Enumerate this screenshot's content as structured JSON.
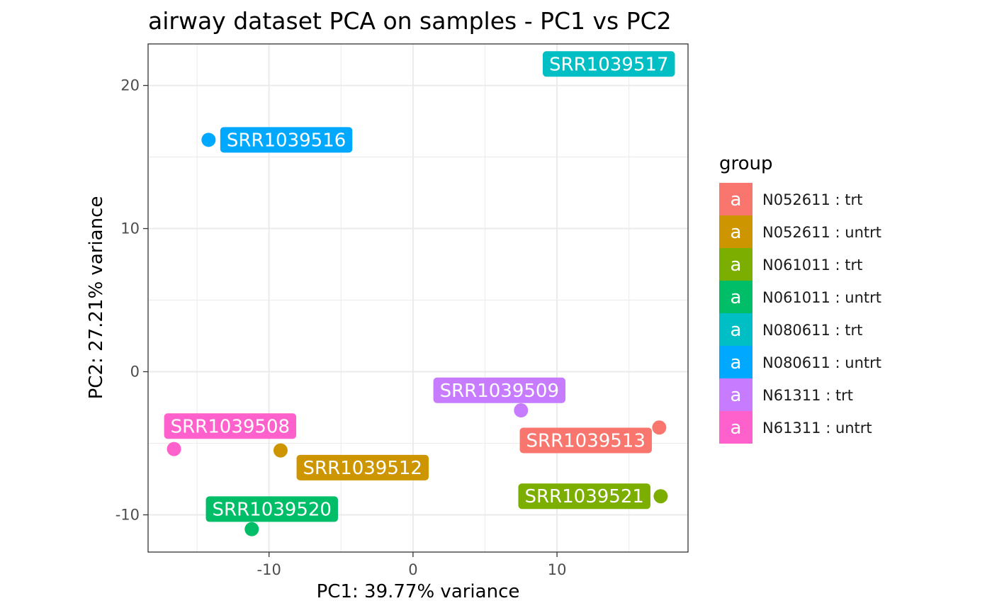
{
  "chart_data": {
    "type": "scatter",
    "title": "airway dataset PCA on samples - PC1 vs PC2",
    "xlabel": "PC1: 39.77% variance",
    "ylabel": "PC2: 27.21% variance",
    "xlim": [
      -18.4,
      19.1
    ],
    "ylim": [
      -12.6,
      22.9
    ],
    "x_ticks": [
      -10,
      0,
      10
    ],
    "x_tick_labels": [
      "-10",
      "0",
      "10"
    ],
    "y_ticks": [
      -10,
      0,
      10,
      20
    ],
    "y_tick_labels": [
      "-10",
      "0",
      "10",
      "20"
    ],
    "grid": true,
    "legend": {
      "title": "group",
      "position": "right",
      "key_glyph": "a",
      "entries": [
        {
          "name": "N052611 : trt",
          "color": "#F8766D"
        },
        {
          "name": "N052611 : untrt",
          "color": "#CD9600"
        },
        {
          "name": "N061011 : trt",
          "color": "#7CAE00"
        },
        {
          "name": "N061011 : untrt",
          "color": "#00BE67"
        },
        {
          "name": "N080611 : trt",
          "color": "#00BFC4"
        },
        {
          "name": "N080611 : untrt",
          "color": "#00A9FF"
        },
        {
          "name": "N61311 : trt",
          "color": "#C77CFF"
        },
        {
          "name": "N61311 : untrt",
          "color": "#FF61CC"
        }
      ]
    },
    "points": [
      {
        "label": "SRR1039508",
        "group": "N61311 : untrt",
        "color": "#FF61CC",
        "x": -16.6,
        "y": -5.4,
        "label_x": -12.7,
        "label_y": -3.8
      },
      {
        "label": "SRR1039509",
        "group": "N61311 : trt",
        "color": "#C77CFF",
        "x": 7.5,
        "y": -2.7,
        "label_x": 6.0,
        "label_y": -1.3
      },
      {
        "label": "SRR1039512",
        "group": "N052611 : untrt",
        "color": "#CD9600",
        "x": -9.2,
        "y": -5.5,
        "label_x": -3.5,
        "label_y": -6.7
      },
      {
        "label": "SRR1039513",
        "group": "N052611 : trt",
        "color": "#F8766D",
        "x": 17.1,
        "y": -3.9,
        "label_x": 12.0,
        "label_y": -4.8
      },
      {
        "label": "SRR1039516",
        "group": "N080611 : untrt",
        "color": "#00A9FF",
        "x": -14.2,
        "y": 16.2,
        "label_x": -8.8,
        "label_y": 16.2
      },
      {
        "label": "SRR1039517",
        "group": "N080611 : trt",
        "color": "#00BFC4",
        "x": 15.0,
        "y": 21.8,
        "label_x": 13.6,
        "label_y": 21.5
      },
      {
        "label": "SRR1039520",
        "group": "N061011 : untrt",
        "color": "#00BE67",
        "x": -11.2,
        "y": -11.0,
        "label_x": -9.8,
        "label_y": -9.6
      },
      {
        "label": "SRR1039521",
        "group": "N061011 : trt",
        "color": "#7CAE00",
        "x": 17.2,
        "y": -8.7,
        "label_x": 11.9,
        "label_y": -8.7
      }
    ]
  }
}
